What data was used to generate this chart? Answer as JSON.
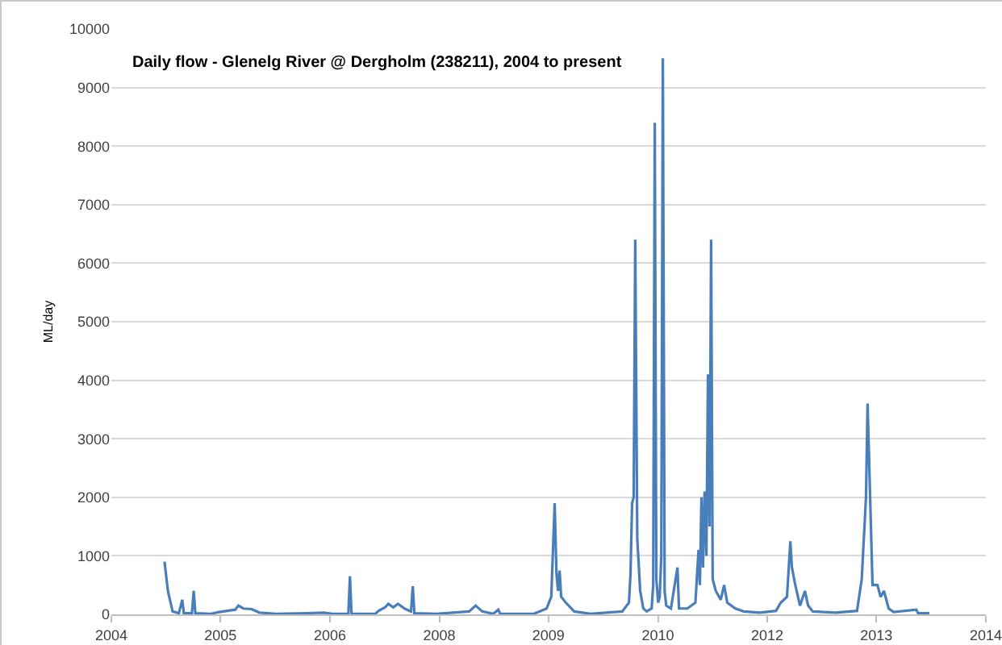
{
  "chart_data": {
    "type": "line",
    "title": "Daily flow - Glenelg River @ Dergholm (238211), 2004 to present",
    "ylabel": "ML/day",
    "x": [
      "2004-08-25",
      "2004-09-09",
      "2004-09-30",
      "2004-10-28",
      "2004-11-12",
      "2004-11-19",
      "2004-12-25",
      "2005-01-02",
      "2005-01-09",
      "2005-03-20",
      "2005-04-25",
      "2005-06-01",
      "2005-07-06",
      "2005-07-20",
      "2005-08-11",
      "2005-09-17",
      "2005-10-22",
      "2006-01-03",
      "2006-05-25",
      "2006-08-05",
      "2006-09-11",
      "2006-11-22",
      "2006-11-29",
      "2006-12-06",
      "2007-03-22",
      "2007-04-06",
      "2007-05-05",
      "2007-05-19",
      "2007-06-10",
      "2007-07-01",
      "2007-07-30",
      "2007-08-28",
      "2007-09-05",
      "2007-09-12",
      "2007-12-21",
      "2008-05-13",
      "2008-06-11",
      "2008-07-10",
      "2008-08-29",
      "2008-09-20",
      "2008-09-28",
      "2009-02-26",
      "2009-04-23",
      "2009-05-14",
      "2009-05-29",
      "2009-06-06",
      "2009-06-13",
      "2009-06-20",
      "2009-06-27",
      "2009-07-18",
      "2009-08-24",
      "2009-11-05",
      "2010-03-26",
      "2010-04-25",
      "2010-05-02",
      "2010-05-09",
      "2010-05-16",
      "2010-05-23",
      "2010-06-01",
      "2010-06-14",
      "2010-06-28",
      "2010-07-13",
      "2010-08-04",
      "2010-08-11",
      "2010-08-18",
      "2010-08-25",
      "2010-09-02",
      "2010-09-09",
      "2010-09-16",
      "2010-09-23",
      "2010-10-01",
      "2010-10-08",
      "2010-10-29",
      "2010-11-27",
      "2010-12-04",
      "2011-01-10",
      "2011-02-15",
      "2011-03-01",
      "2011-03-07",
      "2011-03-14",
      "2011-03-21",
      "2011-03-28",
      "2011-04-05",
      "2011-04-12",
      "2011-04-19",
      "2011-04-26",
      "2011-05-03",
      "2011-05-17",
      "2011-06-08",
      "2011-06-23",
      "2011-07-07",
      "2011-08-12",
      "2011-09-18",
      "2011-11-29",
      "2012-02-09",
      "2012-03-01",
      "2012-03-29",
      "2012-04-13",
      "2012-04-20",
      "2012-05-05",
      "2012-05-26",
      "2012-06-17",
      "2012-07-01",
      "2012-07-22",
      "2012-11-01",
      "2013-02-04",
      "2013-02-25",
      "2013-03-16",
      "2013-03-23",
      "2013-04-07",
      "2013-04-14",
      "2013-05-06",
      "2013-05-20",
      "2013-06-04",
      "2013-06-25",
      "2013-07-17",
      "2013-10-26",
      "2013-11-03",
      "2013-12-23"
    ],
    "series": [
      {
        "color": "#4a7ebb",
        "values": [
          900,
          400,
          50,
          20,
          250,
          20,
          20,
          400,
          20,
          10,
          40,
          60,
          80,
          150,
          100,
          90,
          30,
          10,
          20,
          30,
          10,
          10,
          650,
          10,
          10,
          60,
          120,
          180,
          120,
          180,
          100,
          50,
          480,
          20,
          10,
          50,
          150,
          50,
          10,
          80,
          10,
          10,
          100,
          300,
          1900,
          700,
          400,
          750,
          300,
          200,
          50,
          10,
          50,
          200,
          700,
          1900,
          2000,
          6400,
          1300,
          400,
          100,
          50,
          100,
          500,
          8400,
          600,
          200,
          300,
          1000,
          9500,
          400,
          150,
          100,
          800,
          100,
          100,
          200,
          1100,
          500,
          2000,
          800,
          2100,
          1000,
          4100,
          1500,
          6400,
          600,
          400,
          250,
          500,
          200,
          100,
          50,
          30,
          60,
          200,
          300,
          1250,
          800,
          500,
          150,
          400,
          150,
          50,
          30,
          60,
          600,
          2000,
          3600,
          1500,
          500,
          500,
          300,
          400,
          100,
          40,
          80,
          20,
          20
        ]
      }
    ],
    "xlim": [
      "2004-01-01",
      "2014-09-01"
    ],
    "xticks": [
      {
        "value": "2004-01-01",
        "label": "2004"
      },
      {
        "value": "2005-05-01",
        "label": "2005"
      },
      {
        "value": "2006-09-01",
        "label": "2006"
      },
      {
        "value": "2008-01-01",
        "label": "2008"
      },
      {
        "value": "2009-05-01",
        "label": "2009"
      },
      {
        "value": "2010-09-01",
        "label": "2010"
      },
      {
        "value": "2012-01-01",
        "label": "2012"
      },
      {
        "value": "2013-05-01",
        "label": "2013"
      },
      {
        "value": "2014-09-01",
        "label": "2014"
      }
    ],
    "ylim": [
      0,
      10000
    ],
    "yticks": [
      0,
      1000,
      2000,
      3000,
      4000,
      5000,
      6000,
      7000,
      8000,
      9000,
      10000
    ],
    "grid": "y",
    "marker": "none",
    "line_style": "solid"
  }
}
